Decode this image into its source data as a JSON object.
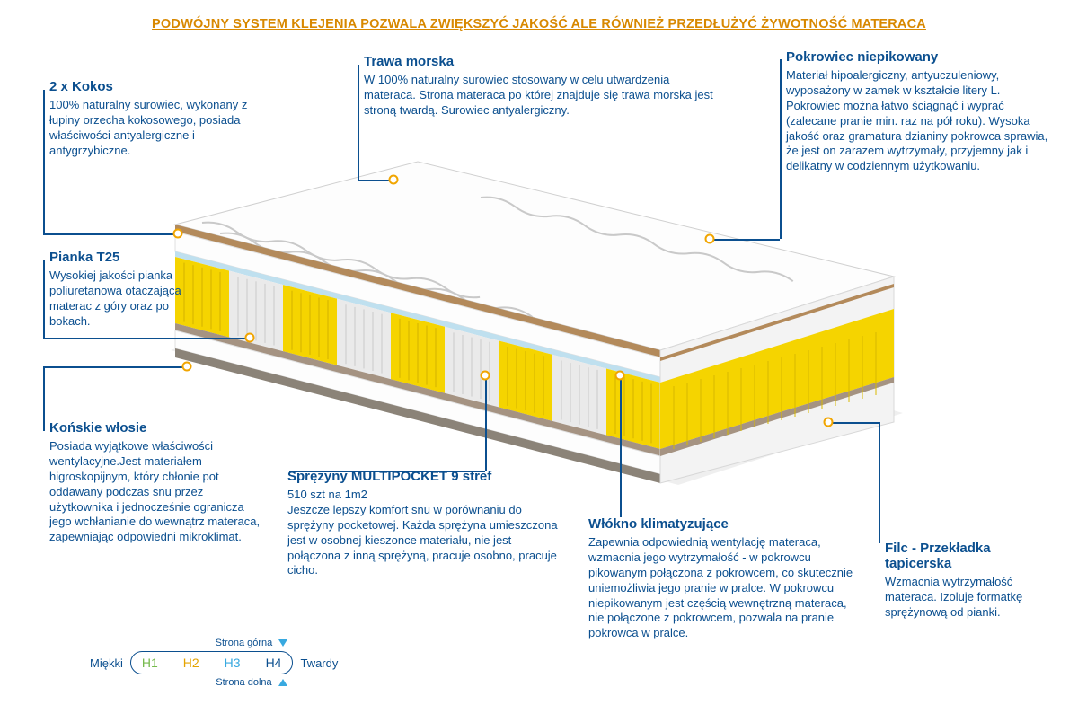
{
  "header": "PODWÓJNY SYSTEM KLEJENIA POZWALA ZWIĘKSZYĆ JAKOŚĆ ALE RÓWNIEŻ PRZEDŁUŻYĆ ŻYWOTNOŚĆ MATERACA",
  "callouts": {
    "kokos": {
      "title": "2 x Kokos",
      "body": "100% naturalny surowiec, wykonany z łupiny orzecha kokosowego, posiada właściwości antyalergiczne i antygrzybiczne."
    },
    "trawa": {
      "title": "Trawa morska",
      "body": "W 100% naturalny surowiec stosowany w celu utwardzenia materaca. Strona materaca po której znajduje się trawa morska jest stroną twardą. Surowiec antyalergiczny."
    },
    "pokrowiec": {
      "title": "Pokrowiec  niepikowany",
      "body": "Materiał hipoalergiczny, antyuczuleniowy, wyposażony w zamek w kształcie litery L. Pokrowiec można łatwo ściągnąć i wyprać (zalecane pranie min.  raz na pół roku). Wysoka jakość oraz gramatura dzianiny pokrowca sprawia, że jest on zarazem wytrzymały, przyjemny jak i delikatny w codziennym użytkowaniu."
    },
    "pianka": {
      "title": "Pianka T25",
      "body": "Wysokiej jakości pianka poliuretanowa otaczająca materac z góry oraz po bokach."
    },
    "wlosie": {
      "title": "Końskie włosie",
      "body": "Posiada wyjątkowe właściwości wentylacyjne.Jest materiałem higroskopijnym, który chłonie pot oddawany podczas snu przez użytkownika i jednocześnie ogranicza jego wchłanianie do wewnątrz materaca, zapewniając odpowiedni mikroklimat."
    },
    "sprezyny": {
      "title": "Sprężyny MULTIPOCKET  9 stref",
      "body": "510 szt na 1m2\nJeszcze lepszy komfort snu w porównaniu do sprężyny pocketowej. Każda sprężyna umieszczona jest w osobnej kieszonce materiału, nie jest połączona z inną sprężyną, pracuje osobno, pracuje cicho."
    },
    "wlokno": {
      "title": "Włókno klimatyzujące",
      "body": "Zapewnia odpowiednią wentylację materaca, wzmacnia jego wytrzymałość - w pokrowcu pikowanym połączona z pokrowcem, co skutecznie uniemożliwia jego pranie w pralce. W pokrowcu niepikowanym jest częścią wewnętrzną materaca, nie połączone z pokrowcem, pozwala na pranie pokrowca w pralce."
    },
    "filc": {
      "title": "Filc - Przekładka tapicerska",
      "body": "Wzmacnia wytrzymałość materaca. Izoluje formatkę sprężynową od pianki."
    }
  },
  "legend": {
    "top": "Strona górna",
    "bottom": "Strona dolna",
    "soft": "Miękki",
    "hard": "Twardy",
    "levels": [
      {
        "label": "H1",
        "color": "#74b94a"
      },
      {
        "label": "H2",
        "color": "#e4a300"
      },
      {
        "label": "H3",
        "color": "#38a9e0"
      },
      {
        "label": "H4",
        "color": "#0b4f8f"
      }
    ]
  },
  "colors": {
    "primary": "#0b4f8f",
    "accent": "#f1a500",
    "spring_yellow": "#f5d400",
    "spring_white": "#eaeaea",
    "mattress_white": "#fdfdfd",
    "coconut": "#b38a5b",
    "felt": "#a59382"
  },
  "mattress": {
    "zones": 9,
    "zone_colors": [
      "#f5d400",
      "#eaeaea",
      "#f5d400",
      "#eaeaea",
      "#f5d400",
      "#eaeaea",
      "#f5d400",
      "#eaeaea",
      "#f5d400"
    ]
  }
}
